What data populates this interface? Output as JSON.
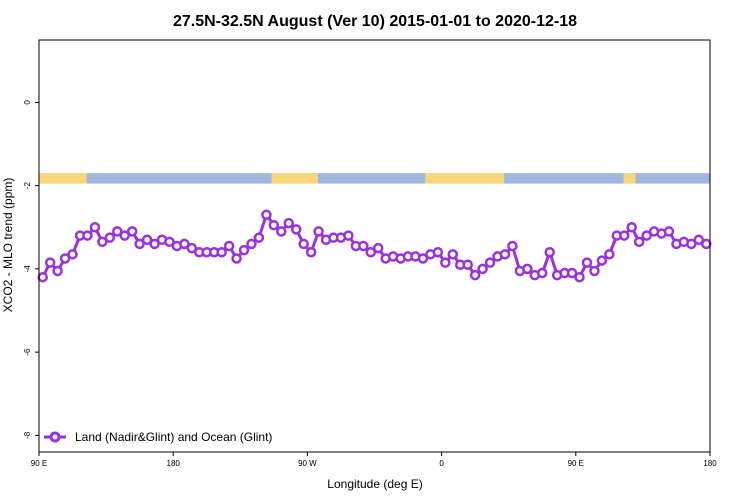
{
  "chart_data": {
    "type": "line",
    "title": "27.5N-32.5N August (Ver 10)   2015-01-01 to 2020-12-18",
    "xlabel": "Longitude (deg E)",
    "ylabel": "XCO2 - MLO trend (ppm)",
    "xlim": [
      90,
      540
    ],
    "ylim": [
      -8.4,
      1.5
    ],
    "xticks": [
      {
        "value": 90,
        "label": "90 E"
      },
      {
        "value": 180,
        "label": "180"
      },
      {
        "value": 270,
        "label": "90 W"
      },
      {
        "value": 360,
        "label": "0"
      },
      {
        "value": 450,
        "label": "90 E"
      },
      {
        "value": 540,
        "label": "180"
      }
    ],
    "yticks": [
      {
        "value": 0,
        "label": "0"
      },
      {
        "value": -2,
        "label": "-2"
      },
      {
        "value": -4,
        "label": "-4"
      },
      {
        "value": -6,
        "label": "-6"
      },
      {
        "value": -8,
        "label": "-8"
      }
    ],
    "surface_band": {
      "y_range": [
        -1.95,
        -1.7
      ],
      "ocean_color": "#9fb8dc",
      "land_color": "#f7d77b",
      "land_segments": [
        [
          90,
          122
        ],
        [
          246,
          277
        ],
        [
          349,
          402
        ],
        [
          482,
          490
        ]
      ]
    },
    "series": [
      {
        "name": "Land (Nadir&Glint) and Ocean (Glint)",
        "color": "#9b30e0",
        "x": [
          92.5,
          97.5,
          102.5,
          107.5,
          112.5,
          117.5,
          122.5,
          127.5,
          132.5,
          137.5,
          142.5,
          147.5,
          152.5,
          157.5,
          162.5,
          167.5,
          172.5,
          177.5,
          182.5,
          187.5,
          192.5,
          197.5,
          202.5,
          207.5,
          212.5,
          217.5,
          222.5,
          227.5,
          232.5,
          237.5,
          242.5,
          247.5,
          252.5,
          257.5,
          262.5,
          267.5,
          272.5,
          277.5,
          282.5,
          287.5,
          292.5,
          297.5,
          302.5,
          307.5,
          312.5,
          317.5,
          322.5,
          327.5,
          332.5,
          337.5,
          342.5,
          347.5,
          352.5,
          357.5,
          362.5,
          367.5,
          372.5,
          377.5,
          382.5,
          387.5,
          392.5,
          397.5,
          402.5,
          407.5,
          412.5,
          417.5,
          422.5,
          427.5,
          432.5,
          437.5,
          442.5,
          447.5,
          452.5,
          457.5,
          462.5,
          467.5,
          472.5,
          477.5,
          482.5,
          487.5,
          492.5,
          497.5,
          502.5,
          507.5,
          512.5,
          517.5,
          522.5,
          527.5,
          532.5,
          537.5
        ],
        "values": [
          -4.2,
          -3.85,
          -4.05,
          -3.75,
          -3.65,
          -3.2,
          -3.2,
          -3.0,
          -3.35,
          -3.25,
          -3.1,
          -3.2,
          -3.1,
          -3.4,
          -3.3,
          -3.4,
          -3.3,
          -3.35,
          -3.45,
          -3.4,
          -3.5,
          -3.6,
          -3.6,
          -3.6,
          -3.6,
          -3.45,
          -3.75,
          -3.55,
          -3.4,
          -3.25,
          -2.7,
          -2.95,
          -3.1,
          -2.9,
          -3.05,
          -3.4,
          -3.6,
          -3.1,
          -3.3,
          -3.25,
          -3.25,
          -3.2,
          -3.45,
          -3.45,
          -3.6,
          -3.5,
          -3.75,
          -3.7,
          -3.75,
          -3.7,
          -3.7,
          -3.75,
          -3.65,
          -3.6,
          -3.85,
          -3.65,
          -3.9,
          -3.9,
          -4.15,
          -4.0,
          -3.85,
          -3.7,
          -3.65,
          -3.45,
          -4.05,
          -4.0,
          -4.15,
          -4.1,
          -3.6,
          -4.15,
          -4.1,
          -4.1,
          -4.2,
          -3.85,
          -4.05,
          -3.8,
          -3.65,
          -3.2,
          -3.2,
          -3.0,
          -3.35,
          -3.2,
          -3.1,
          -3.15,
          -3.1,
          -3.4,
          -3.35,
          -3.4,
          -3.3,
          -3.4
        ]
      }
    ],
    "legend": {
      "position": "bottom-left",
      "label": "Land (Nadir&Glint) and Ocean (Glint)"
    }
  }
}
